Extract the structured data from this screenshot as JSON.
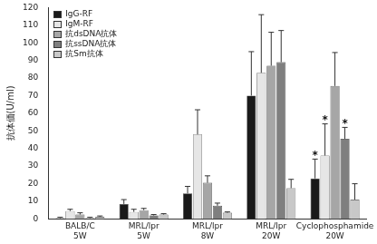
{
  "chart_data": {
    "type": "bar",
    "y_label": "抗体価(U/ml)",
    "categories": [
      "BALB/C 5W",
      "MRL/lpr 5W",
      "MRL/lpr 8W",
      "MRL/lpr 20W",
      "Cyclophosphamide 20W"
    ],
    "series": [
      {
        "name": "IgG-RF",
        "color": "#1a1a1a",
        "values": [
          0.5,
          8.5,
          14.5,
          70,
          23
        ],
        "errors": [
          0.5,
          2.5,
          4,
          25,
          11
        ]
      },
      {
        "name": "IgM-RF",
        "color": "#e6e6e6",
        "values": [
          4.5,
          4,
          48,
          83,
          36
        ],
        "errors": [
          1,
          1.5,
          14,
          33,
          18
        ]
      },
      {
        "name": "抗dsDNA抗体",
        "color": "#a6a6a6",
        "values": [
          2.5,
          5,
          20.5,
          87,
          75.5
        ],
        "errors": [
          1,
          1,
          4,
          19,
          19
        ]
      },
      {
        "name": "抗ssDNA抗体",
        "color": "#7f7f7f",
        "values": [
          0.5,
          2,
          7.5,
          89,
          45.5
        ],
        "errors": [
          0.5,
          0.5,
          1.5,
          18,
          6.5
        ]
      },
      {
        "name": "抗Sm抗体",
        "color": "#c8c8c8",
        "values": [
          1.2,
          2.5,
          3.5,
          17.5,
          11
        ],
        "errors": [
          0.5,
          0.5,
          0.5,
          5,
          9
        ]
      }
    ],
    "ylim": [
      0,
      120
    ],
    "yticks": [
      0,
      10,
      20,
      30,
      40,
      50,
      60,
      70,
      80,
      90,
      100,
      110,
      120
    ],
    "grid": false,
    "legend": "upper left",
    "annotations": [
      {
        "text": "*",
        "category": "Cyclophosphamide 20W",
        "series": "IgG-RF"
      },
      {
        "text": "*",
        "category": "Cyclophosphamide 20W",
        "series": "IgM-RF"
      },
      {
        "text": "*",
        "category": "Cyclophosphamide 20W",
        "series": "抗ssDNA抗体"
      }
    ]
  }
}
